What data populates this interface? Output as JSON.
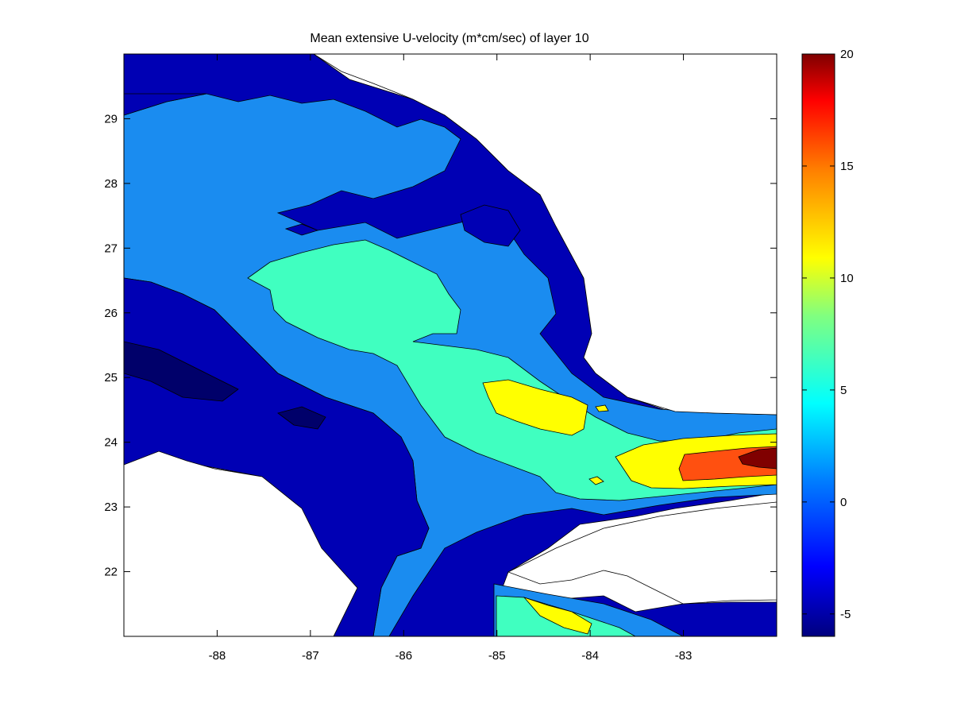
{
  "chart_data": {
    "type": "heatmap",
    "title": "Mean extensive U-velocity (m*cm/sec)  of layer 10",
    "xlabel": "",
    "ylabel": "",
    "xlim": [
      -89,
      -82
    ],
    "ylim": [
      21,
      30
    ],
    "x_ticks": [
      "-88",
      "-87",
      "-86",
      "-85",
      "-84",
      "-83"
    ],
    "y_ticks": [
      "22",
      "23",
      "24",
      "25",
      "26",
      "27",
      "28",
      "29"
    ],
    "colorbar": {
      "range": [
        -6,
        20
      ],
      "ticks": [
        "-5",
        "0",
        "5",
        "10",
        "15",
        "20"
      ],
      "levels": [
        {
          "min": -6,
          "max": -2.5,
          "color": "#0000b4"
        },
        {
          "min": -2.5,
          "max": 1,
          "color": "#1a8cf0"
        },
        {
          "min": 1,
          "max": 6,
          "color": "#40ffc0"
        },
        {
          "min": 6,
          "max": 11,
          "color": "#ffff00"
        },
        {
          "min": 11,
          "max": 16,
          "color": "#ff5010"
        },
        {
          "min": 16,
          "max": 20,
          "color": "#800000"
        }
      ]
    },
    "grid": false,
    "legend": "colorbar-right"
  },
  "colors": {
    "land": "#ffffff",
    "contour_line": "#000000",
    "darkest": "#00006a"
  }
}
